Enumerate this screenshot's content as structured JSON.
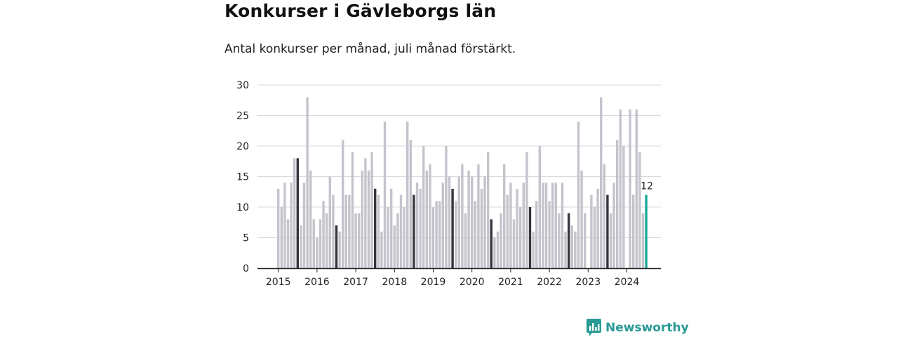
{
  "title": "Konkurser i Gävleborgs län",
  "subtitle": "Antal konkurser per månad, juli månad förstärkt.",
  "brand": {
    "name": "Newsworthy",
    "icon": "bar-chart-speech-icon",
    "color": "#2a9a95"
  },
  "chart_data": {
    "type": "bar",
    "ylim": [
      0,
      30
    ],
    "yticks": [
      0,
      5,
      10,
      15,
      20,
      25,
      30
    ],
    "xticks": [
      "2015",
      "2016",
      "2017",
      "2018",
      "2019",
      "2020",
      "2021",
      "2022",
      "2023",
      "2024"
    ],
    "start": "2015-01",
    "end": "2024-07",
    "grid": true,
    "colors": {
      "bar": "#c4c4cc",
      "july": "#35353d",
      "latest": "#1aa89c"
    },
    "highlight_month": "juli",
    "latest_label": "12",
    "values": [
      13,
      10,
      14,
      8,
      14,
      18,
      18,
      7,
      14,
      28,
      16,
      8,
      5,
      8,
      11,
      9,
      15,
      12,
      7,
      6,
      21,
      12,
      12,
      19,
      9,
      9,
      16,
      18,
      16,
      19,
      13,
      12,
      6,
      24,
      10,
      13,
      7,
      9,
      12,
      10,
      24,
      21,
      12,
      14,
      13,
      20,
      16,
      17,
      10,
      11,
      11,
      14,
      20,
      15,
      13,
      11,
      15,
      17,
      9,
      16,
      15,
      11,
      17,
      13,
      15,
      19,
      8,
      5,
      6,
      9,
      17,
      12,
      14,
      8,
      13,
      10,
      14,
      19,
      10,
      6,
      11,
      20,
      14,
      14,
      11,
      14,
      14,
      9,
      14,
      6,
      9,
      7,
      6,
      24,
      16,
      9,
      0,
      12,
      10,
      13,
      28,
      17,
      12,
      9,
      14,
      21,
      26,
      20,
      0,
      26,
      12,
      26,
      19,
      9,
      12
    ]
  }
}
